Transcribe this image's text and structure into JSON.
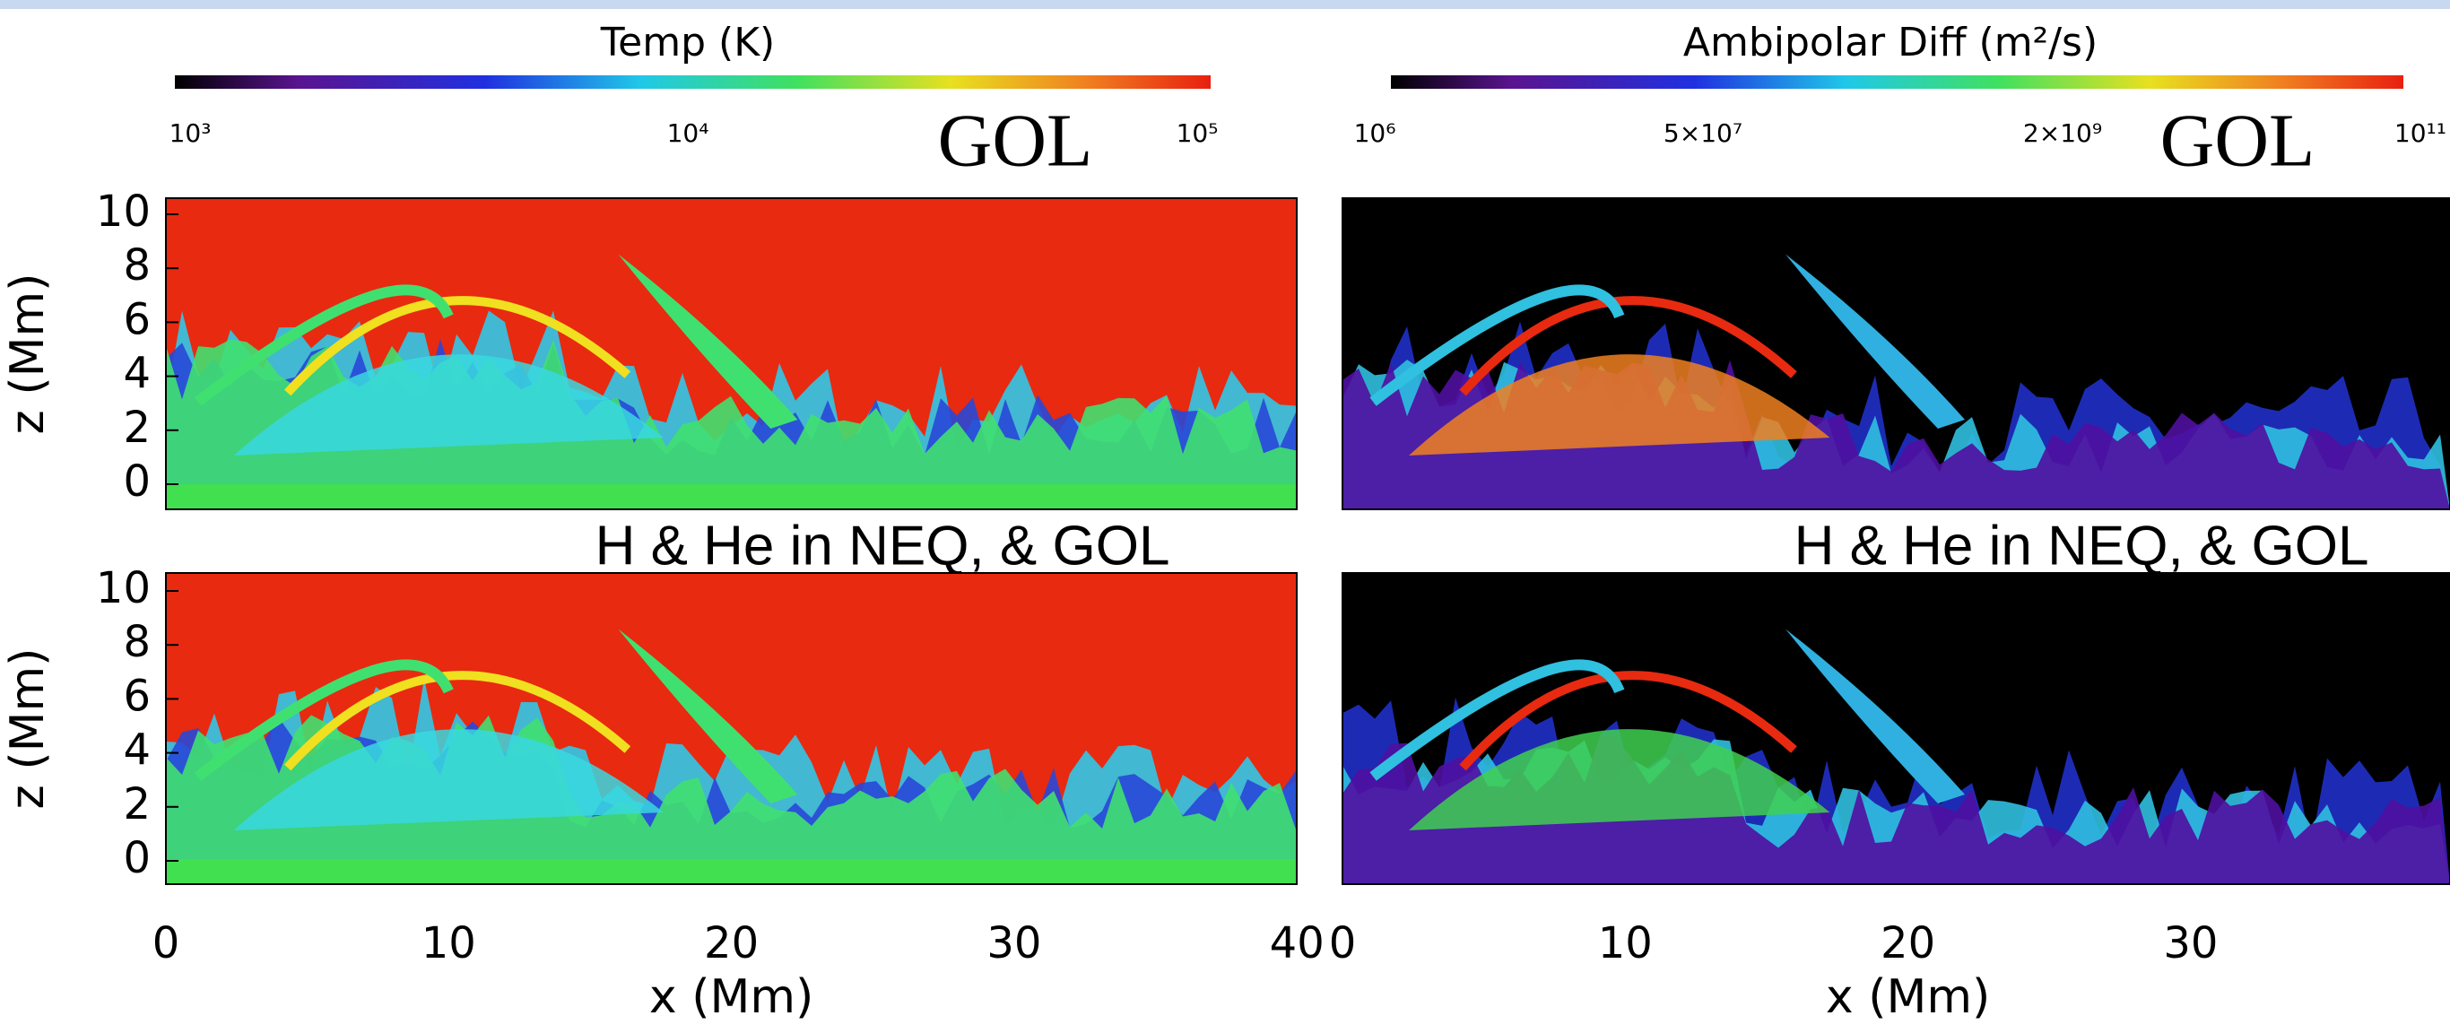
{
  "colorbars": [
    {
      "title": "Temp (K)",
      "tick_labels": [
        "10³",
        "10⁴",
        "10⁵"
      ]
    },
    {
      "title": "Ambipolar Diff (m²/s)",
      "tick_labels": [
        "10⁶",
        "5×10⁷",
        "2×10⁹",
        "10¹¹"
      ]
    }
  ],
  "panels": [
    {
      "label": "GOL"
    },
    {
      "label": "GOL"
    },
    {
      "label": "H & He in NEQ, & GOL"
    },
    {
      "label": "H & He in NEQ, & GOL"
    }
  ],
  "y_axis": {
    "label": "z (Mm)",
    "tick_labels": [
      "0",
      "2",
      "4",
      "6",
      "8",
      "10"
    ]
  },
  "x_axis": {
    "label": "x (Mm)",
    "tick_labels": [
      "0",
      "10",
      "20",
      "30",
      "40"
    ]
  }
}
